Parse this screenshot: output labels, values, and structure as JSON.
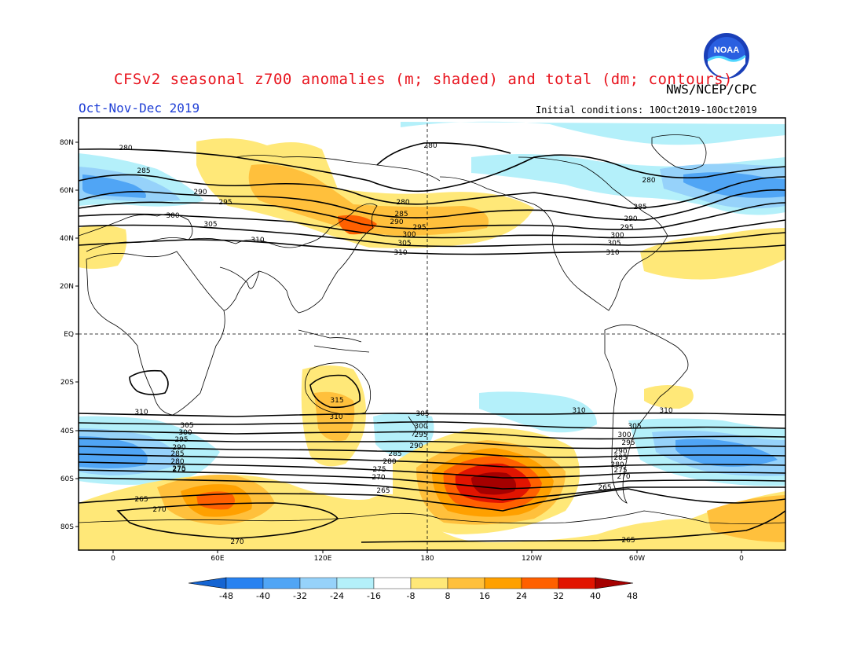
{
  "header": {
    "title": "CFSv2 seasonal z700 anomalies (m; shaded) and total (dm; contours)",
    "agency": "NWS/NCEP/CPC",
    "period": "Oct-Nov-Dec 2019",
    "initial_conditions": "Initial conditions: 10Oct2019-10Oct2019",
    "logo_text": "NOAA"
  },
  "axes": {
    "lat_labels": [
      "80N",
      "60N",
      "40N",
      "20N",
      "EQ",
      "20S",
      "40S",
      "60S",
      "80S"
    ],
    "lon_labels": [
      "0",
      "60E",
      "120E",
      "180",
      "120W",
      "60W",
      "0"
    ]
  },
  "colorbar": {
    "ticks": [
      "-48",
      "-40",
      "-32",
      "-24",
      "-16",
      "-8",
      "8",
      "16",
      "24",
      "32",
      "40",
      "48"
    ],
    "colors": [
      "#1464d2",
      "#2882f0",
      "#50a5f5",
      "#96d2fa",
      "#b4f0fa",
      "#ffffff",
      "#ffe878",
      "#ffc03c",
      "#ffa000",
      "#ff6000",
      "#e11400",
      "#a50000"
    ]
  },
  "contour_labels": [
    {
      "text": "280"
    },
    {
      "text": "285"
    },
    {
      "text": "290"
    },
    {
      "text": "295"
    },
    {
      "text": "300"
    },
    {
      "text": "305"
    },
    {
      "text": "310"
    },
    {
      "text": "280"
    },
    {
      "text": "280"
    },
    {
      "text": "285"
    },
    {
      "text": "290"
    },
    {
      "text": "295"
    },
    {
      "text": "300"
    },
    {
      "text": "305"
    },
    {
      "text": "310"
    },
    {
      "text": "280"
    },
    {
      "text": "285"
    },
    {
      "text": "290"
    },
    {
      "text": "295"
    },
    {
      "text": "300"
    },
    {
      "text": "305"
    },
    {
      "text": "310"
    },
    {
      "text": "310"
    },
    {
      "text": "305"
    },
    {
      "text": "300"
    },
    {
      "text": "295"
    },
    {
      "text": "290"
    },
    {
      "text": "285"
    },
    {
      "text": "280"
    },
    {
      "text": "275"
    },
    {
      "text": "270"
    },
    {
      "text": "265"
    },
    {
      "text": "270"
    },
    {
      "text": "270"
    },
    {
      "text": "315"
    },
    {
      "text": "310"
    },
    {
      "text": "305"
    },
    {
      "text": "300"
    },
    {
      "text": "295"
    },
    {
      "text": "290"
    },
    {
      "text": "285"
    },
    {
      "text": "280"
    },
    {
      "text": "275"
    },
    {
      "text": "270"
    },
    {
      "text": "265"
    },
    {
      "text": "310"
    },
    {
      "text": "310"
    },
    {
      "text": "305"
    },
    {
      "text": "300"
    },
    {
      "text": "295"
    },
    {
      "text": "290"
    },
    {
      "text": "285"
    },
    {
      "text": "280"
    },
    {
      "text": "275"
    },
    {
      "text": "270"
    },
    {
      "text": "265"
    },
    {
      "text": "265"
    }
  ]
}
